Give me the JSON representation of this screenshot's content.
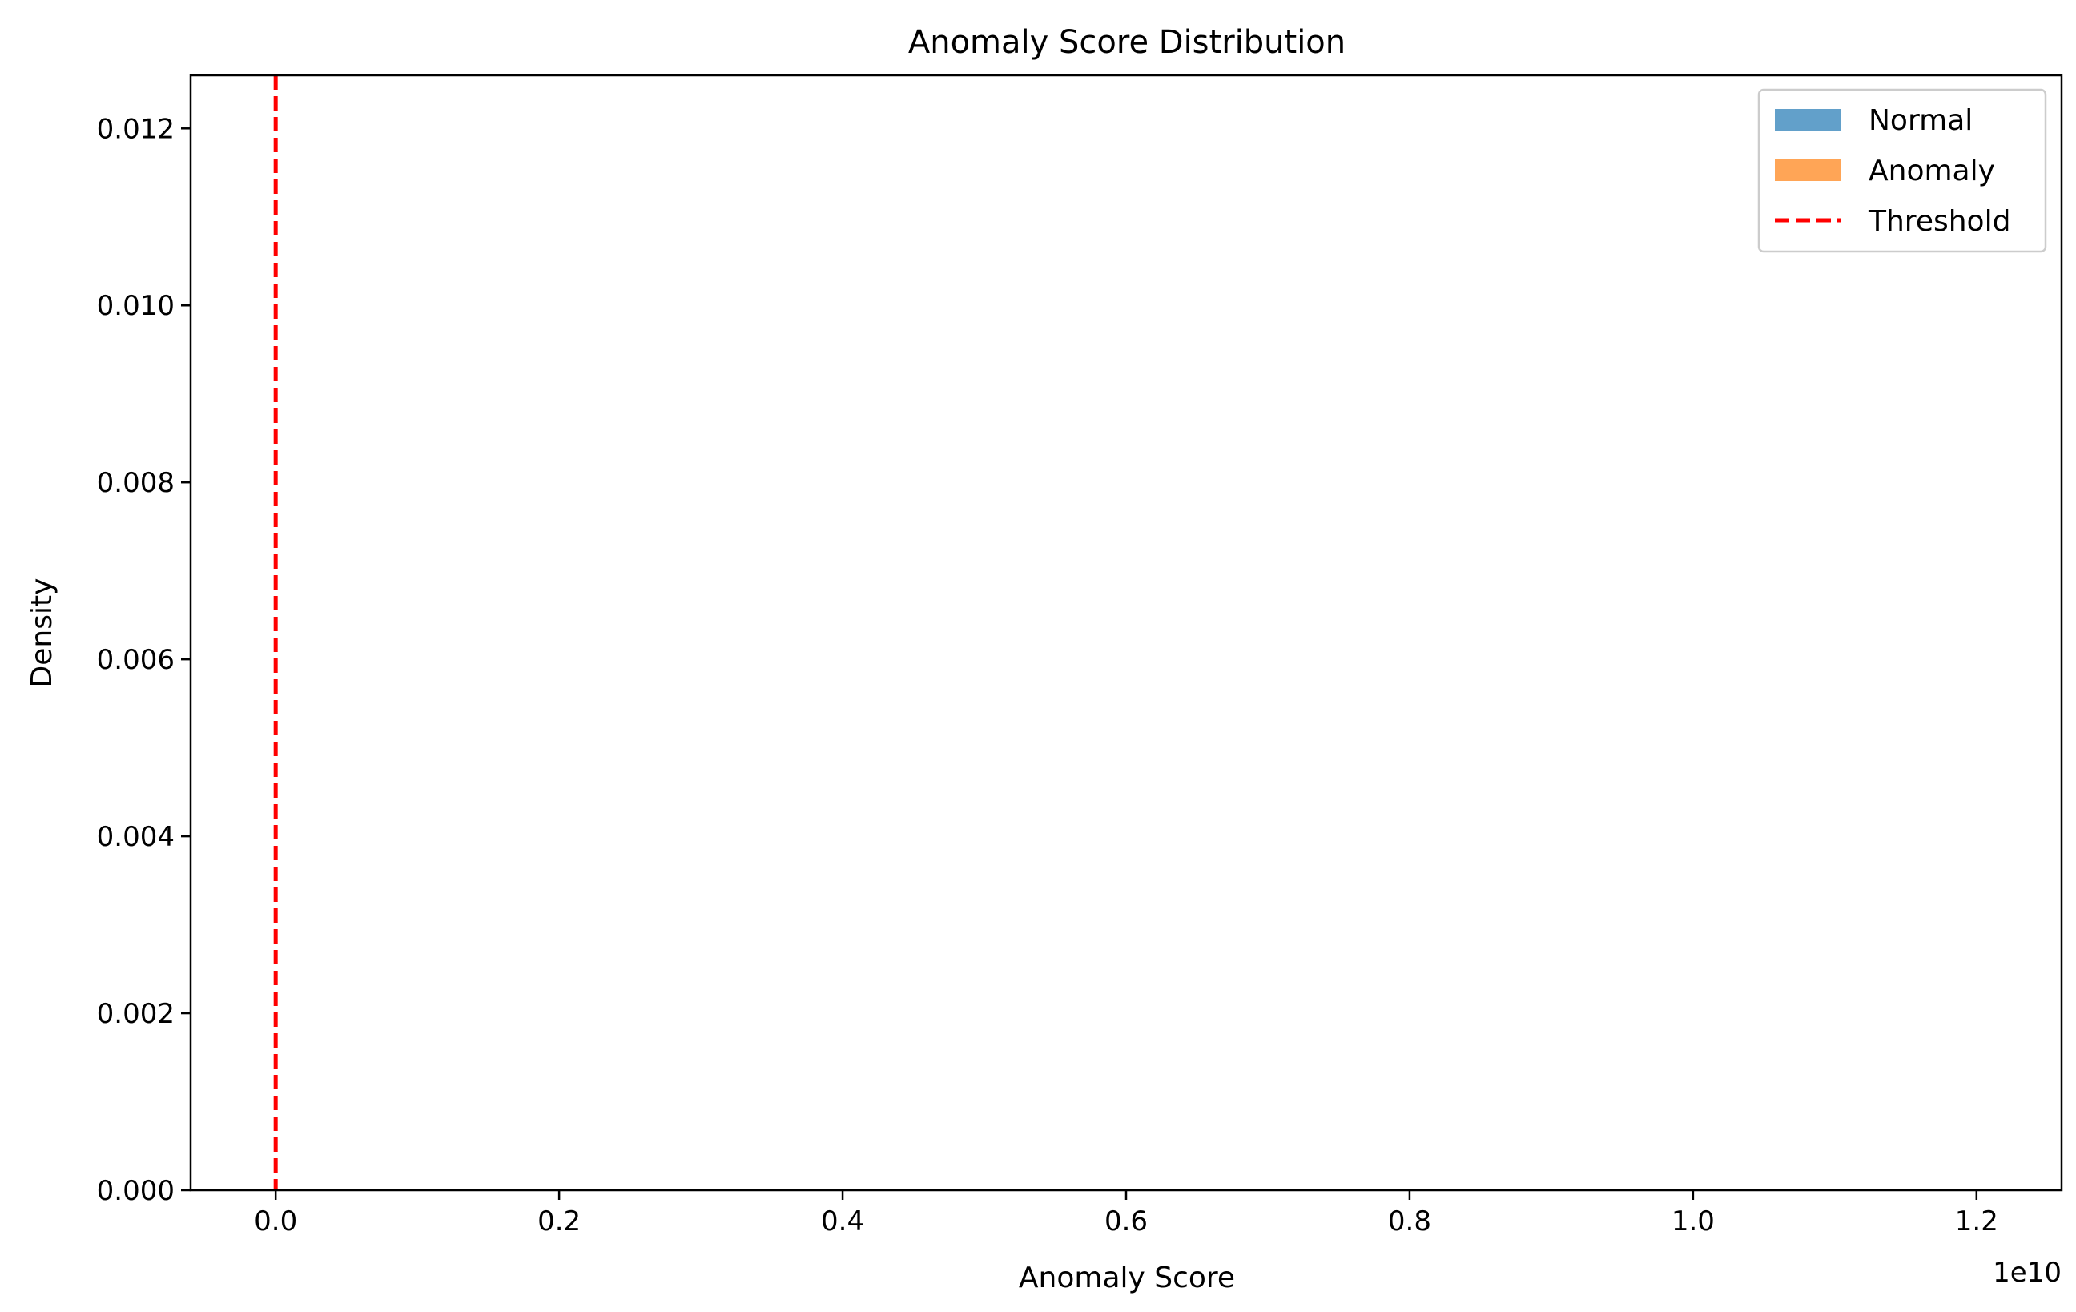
{
  "chart_data": {
    "type": "histogram",
    "title": "Anomaly Score Distribution",
    "xlabel": "Anomaly Score",
    "ylabel": "Density",
    "x_offset_text": "1e10",
    "xlim": [
      -0.06,
      1.26
    ],
    "ylim": [
      0,
      0.0126
    ],
    "x_scale_factor": 10000000000,
    "xticks": [
      0.0,
      0.2,
      0.4,
      0.6,
      0.8,
      1.0,
      1.2
    ],
    "xtick_labels": [
      "0.0",
      "0.2",
      "0.4",
      "0.6",
      "0.8",
      "1.0",
      "1.2"
    ],
    "yticks": [
      0.0,
      0.002,
      0.004,
      0.006,
      0.008,
      0.01,
      0.012
    ],
    "ytick_labels": [
      "0.000",
      "0.002",
      "0.004",
      "0.006",
      "0.008",
      "0.010",
      "0.012"
    ],
    "grid": false,
    "legend_position": "top-right",
    "series": [
      {
        "name": "Normal",
        "kind": "histogram",
        "color": "#1f77b4",
        "alpha": 0.7,
        "values": []
      },
      {
        "name": "Anomaly",
        "kind": "histogram",
        "color": "#ff7f0e",
        "alpha": 0.7,
        "values": []
      },
      {
        "name": "Threshold",
        "kind": "vline",
        "color": "#ff0000",
        "linestyle": "dashed",
        "x": 0.0
      }
    ]
  }
}
